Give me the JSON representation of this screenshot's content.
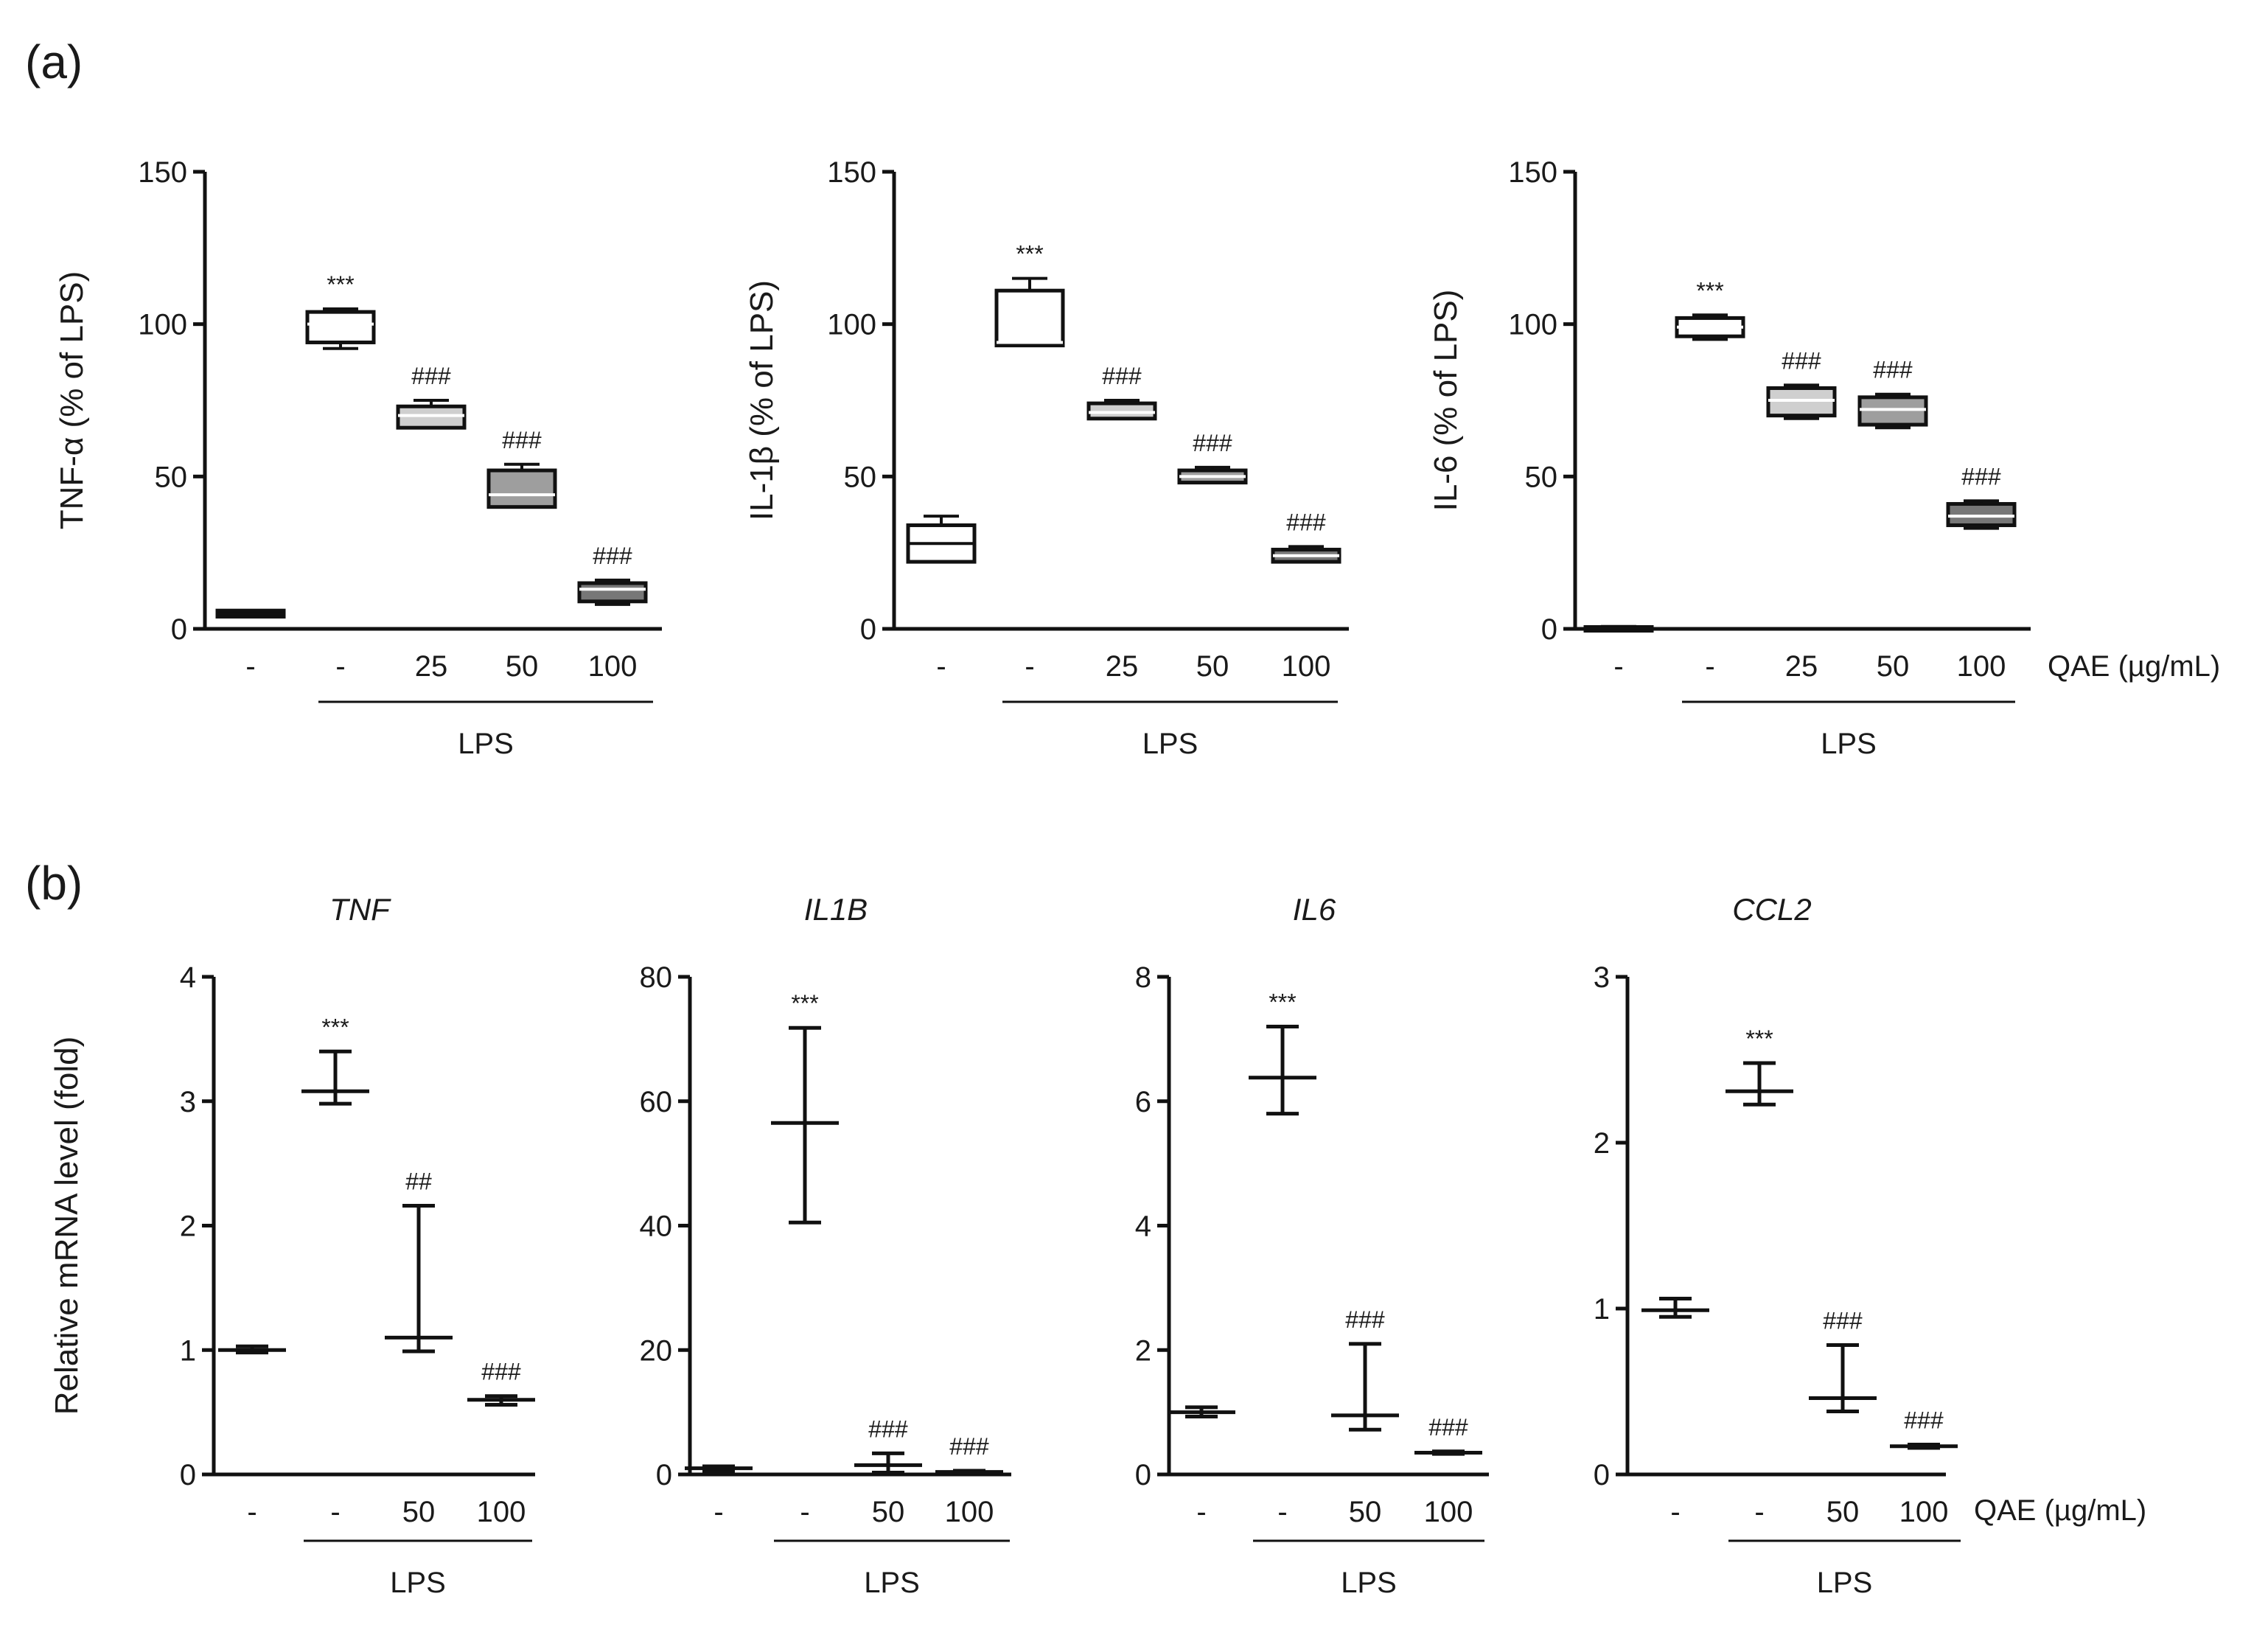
{
  "panel_labels": [
    "(a)",
    "(b)"
  ],
  "treatment_label": "QAE (µg/mL)",
  "group_label": "LPS",
  "chart_data": [
    {
      "type": "box",
      "title": "",
      "ylabel": "TNF-α (% of LPS)",
      "ylim": [
        0,
        150
      ],
      "yticks": [
        0,
        50,
        100,
        150
      ],
      "categories": [
        "-",
        "-",
        "25",
        "50",
        "100"
      ],
      "boxes": [
        {
          "min": 4,
          "q1": 4,
          "median": 5,
          "q3": 6,
          "max": 6
        },
        {
          "min": 92,
          "q1": 94,
          "median": 100,
          "q3": 104,
          "max": 105
        },
        {
          "min": 66,
          "q1": 66,
          "median": 70,
          "q3": 73,
          "max": 75
        },
        {
          "min": 40,
          "q1": 40,
          "median": 44,
          "q3": 52,
          "max": 54
        },
        {
          "min": 8,
          "q1": 9,
          "median": 13,
          "q3": 15,
          "max": 16
        }
      ],
      "fills": [
        "#ffffff",
        "#ffffff",
        "#cfcfcf",
        "#9e9e9e",
        "#777777"
      ],
      "annotations": [
        "",
        "***",
        "###",
        "###",
        "###"
      ]
    },
    {
      "type": "box",
      "title": "",
      "ylabel": "IL-1β (% of LPS)",
      "ylim": [
        0,
        150
      ],
      "yticks": [
        0,
        50,
        100,
        150
      ],
      "categories": [
        "-",
        "-",
        "25",
        "50",
        "100"
      ],
      "boxes": [
        {
          "min": 22,
          "q1": 22,
          "median": 28,
          "q3": 34,
          "max": 37
        },
        {
          "min": 93,
          "q1": 93,
          "median": 94,
          "q3": 111,
          "max": 115
        },
        {
          "min": 69,
          "q1": 69,
          "median": 71,
          "q3": 74,
          "max": 75
        },
        {
          "min": 48,
          "q1": 48,
          "median": 50,
          "q3": 52,
          "max": 53
        },
        {
          "min": 22,
          "q1": 22,
          "median": 24,
          "q3": 26,
          "max": 27
        }
      ],
      "fills": [
        "#ffffff",
        "#ffffff",
        "#cfcfcf",
        "#9e9e9e",
        "#777777"
      ],
      "annotations": [
        "",
        "***",
        "###",
        "###",
        "###"
      ]
    },
    {
      "type": "box",
      "title": "",
      "ylabel": "IL-6 (% of LPS)",
      "ylim": [
        0,
        150
      ],
      "yticks": [
        0,
        50,
        100,
        150
      ],
      "categories": [
        "-",
        "-",
        "25",
        "50",
        "100"
      ],
      "boxes": [
        {
          "min": 0,
          "q1": 0,
          "median": 0.3,
          "q3": 0.6,
          "max": 0.8
        },
        {
          "min": 95,
          "q1": 96,
          "median": 99,
          "q3": 102,
          "max": 103
        },
        {
          "min": 69,
          "q1": 70,
          "median": 75,
          "q3": 79,
          "max": 80
        },
        {
          "min": 66,
          "q1": 67,
          "median": 72,
          "q3": 76,
          "max": 77
        },
        {
          "min": 33,
          "q1": 34,
          "median": 37,
          "q3": 41,
          "max": 42
        }
      ],
      "fills": [
        "#ffffff",
        "#ffffff",
        "#cfcfcf",
        "#9e9e9e",
        "#777777"
      ],
      "annotations": [
        "",
        "***",
        "###",
        "###",
        "###"
      ]
    },
    {
      "type": "errorbar",
      "title": "TNF",
      "ylabel": "Relative mRNA level (fold)",
      "ylim": [
        0,
        4
      ],
      "yticks": [
        0,
        1,
        2,
        3,
        4
      ],
      "categories": [
        "-",
        "-",
        "50",
        "100"
      ],
      "points": [
        {
          "mean": 1.0,
          "lower": 0.98,
          "upper": 1.03
        },
        {
          "mean": 3.08,
          "lower": 2.98,
          "upper": 3.4
        },
        {
          "mean": 1.1,
          "lower": 0.99,
          "upper": 2.16
        },
        {
          "mean": 0.6,
          "lower": 0.56,
          "upper": 0.63
        }
      ],
      "annotations": [
        "",
        "***",
        "##",
        "###"
      ]
    },
    {
      "type": "errorbar",
      "title": "IL1B",
      "ylabel": "",
      "ylim": [
        0,
        80
      ],
      "yticks": [
        0,
        20,
        40,
        60,
        80
      ],
      "categories": [
        "-",
        "-",
        "50",
        "100"
      ],
      "points": [
        {
          "mean": 1.0,
          "lower": 0.6,
          "upper": 1.3
        },
        {
          "mean": 56.5,
          "lower": 40.5,
          "upper": 71.8
        },
        {
          "mean": 1.5,
          "lower": 0.3,
          "upper": 3.4
        },
        {
          "mean": 0.4,
          "lower": 0.2,
          "upper": 0.6
        }
      ],
      "annotations": [
        "",
        "***",
        "###",
        "###"
      ]
    },
    {
      "type": "errorbar",
      "title": "IL6",
      "ylabel": "",
      "ylim": [
        0,
        8
      ],
      "yticks": [
        0,
        2,
        4,
        6,
        8
      ],
      "categories": [
        "-",
        "-",
        "50",
        "100"
      ],
      "points": [
        {
          "mean": 1.0,
          "lower": 0.93,
          "upper": 1.08
        },
        {
          "mean": 6.38,
          "lower": 5.8,
          "upper": 7.2
        },
        {
          "mean": 0.95,
          "lower": 0.72,
          "upper": 2.1
        },
        {
          "mean": 0.35,
          "lower": 0.33,
          "upper": 0.37
        }
      ],
      "annotations": [
        "",
        "***",
        "###",
        "###"
      ]
    },
    {
      "type": "errorbar",
      "title": "CCL2",
      "ylabel": "",
      "ylim": [
        0,
        3
      ],
      "yticks": [
        0,
        1,
        2,
        3
      ],
      "categories": [
        "-",
        "-",
        "50",
        "100"
      ],
      "points": [
        {
          "mean": 0.99,
          "lower": 0.95,
          "upper": 1.06
        },
        {
          "mean": 2.31,
          "lower": 2.23,
          "upper": 2.48
        },
        {
          "mean": 0.46,
          "lower": 0.38,
          "upper": 0.78
        },
        {
          "mean": 0.17,
          "lower": 0.16,
          "upper": 0.18
        }
      ],
      "annotations": [
        "",
        "***",
        "###",
        "###"
      ]
    }
  ]
}
